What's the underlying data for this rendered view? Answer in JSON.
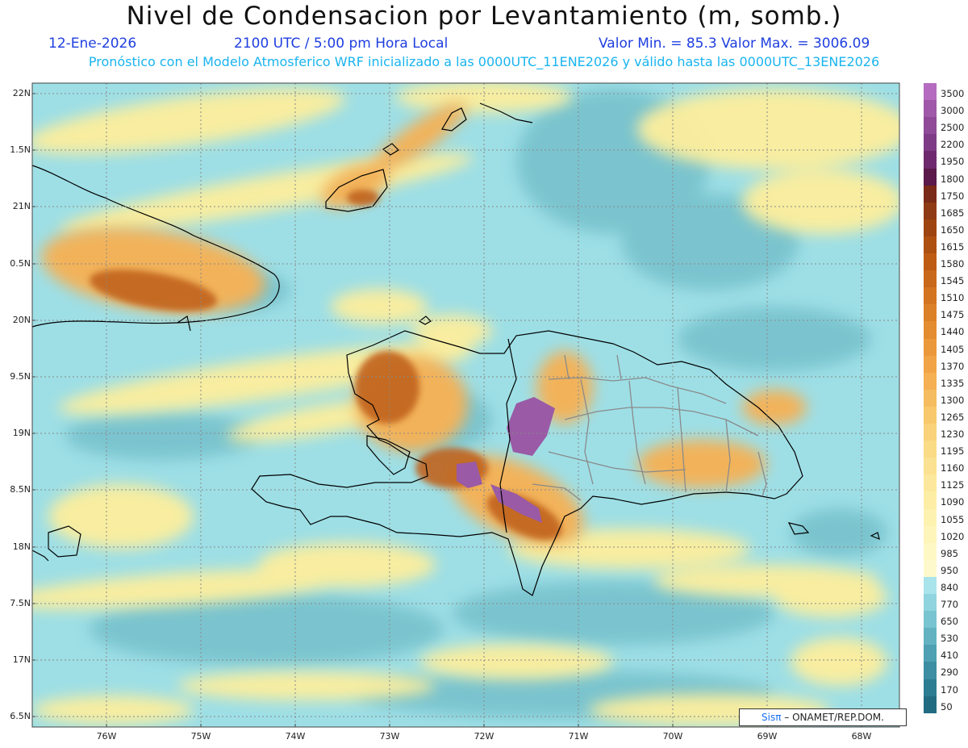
{
  "header": {
    "title": "Nivel de Condensacion por Levantamiento (m, somb.)",
    "date": "12-Ene-2026",
    "time": "2100 UTC / 5:00 pm Hora Local",
    "minmax": "Valor Min. = 85.3  Valor Max. = 3006.09",
    "info": "Pronóstico con el Modelo Atmosferico WRF inicializado a las 0000UTC_11ENE2026 y válido hasta las  0000UTC_13ENE2026"
  },
  "axes": {
    "lat_labels": [
      "22N",
      "1.5N",
      "21N",
      "0.5N",
      "20N",
      "9.5N",
      "19N",
      "8.5N",
      "18N",
      "7.5N",
      "17N",
      "6.5N"
    ],
    "lon_labels": [
      "76W",
      "75W",
      "74W",
      "73W",
      "72W",
      "71W",
      "70W",
      "69W",
      "68W"
    ]
  },
  "colorbar": {
    "labels": [
      "3500",
      "3000",
      "2500",
      "2200",
      "1950",
      "1800",
      "1750",
      "1685",
      "1650",
      "1615",
      "1580",
      "1545",
      "1510",
      "1475",
      "1440",
      "1405",
      "1370",
      "1335",
      "1300",
      "1265",
      "1230",
      "1195",
      "1160",
      "1125",
      "1090",
      "1055",
      "1020",
      "985",
      "950",
      "840",
      "770",
      "650",
      "530",
      "410",
      "290",
      "170",
      "50"
    ],
    "colors": [
      "#b56cc0",
      "#a058a8",
      "#8f4a98",
      "#7e3c86",
      "#6e2a6c",
      "#5a1a4a",
      "#7a2a18",
      "#8e3a14",
      "#9e4410",
      "#ae5010",
      "#be5c14",
      "#c8681a",
      "#d27420",
      "#dc8028",
      "#e48c30",
      "#ea983a",
      "#f0a446",
      "#f4b052",
      "#f6bc60",
      "#f8c86c",
      "#f9d27a",
      "#fadb86",
      "#fbe292",
      "#fce89c",
      "#fdeea6",
      "#fdf2b0",
      "#fdf5ba",
      "#fef8c4",
      "#fef9cc",
      "#a8e4ea",
      "#8fd4de",
      "#78c4d0",
      "#62b2c2",
      "#4ea0b2",
      "#3c8ea2",
      "#2c7c92",
      "#226c82"
    ],
    "value_steps": 37
  },
  "credit": {
    "sis": "Sis",
    "pi": "π",
    "org": "– ONAMET/REP.DOM."
  },
  "palette": {
    "ocean_low": "#9edfe6",
    "ocean_mid": "#6fbcc8",
    "yellow": "#fdee9c",
    "orange": "#f2b25a",
    "brown": "#c0621e",
    "purple": "#9a5aa6",
    "coast": "#000000",
    "border": "#8a8a8a",
    "grid": "#888888"
  }
}
